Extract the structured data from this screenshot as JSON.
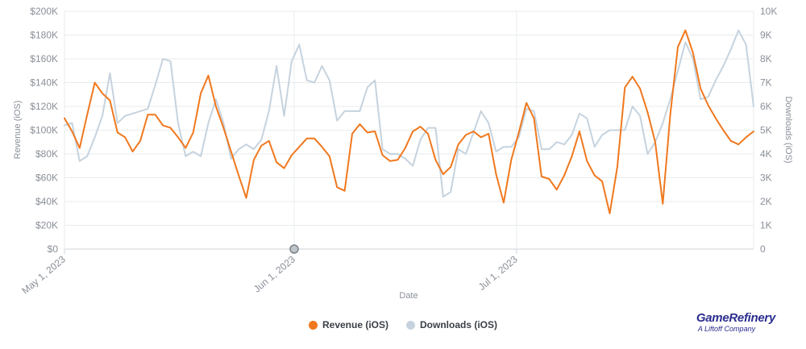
{
  "chart_data": {
    "type": "line",
    "xlabel": "Date",
    "ylabel_left": "Revenue (iOS)",
    "ylabel_right": "Downloads (iOS)",
    "ylim_left": [
      0,
      200000
    ],
    "ylim_right": [
      0,
      10000
    ],
    "y_ticks_left": [
      "$0",
      "$20K",
      "$40K",
      "$60K",
      "$80K",
      "$100K",
      "$120K",
      "$140K",
      "$160K",
      "$180K",
      "$200K"
    ],
    "y_ticks_right": [
      "0",
      "1K",
      "2K",
      "3K",
      "4K",
      "5K",
      "6K",
      "7K",
      "8K",
      "9K",
      "10K"
    ],
    "x_ticks": [
      {
        "label": "May 1, 2023",
        "day": 0
      },
      {
        "label": "Jun 1, 2023",
        "day": 31
      },
      {
        "label": "Jul 1, 2023",
        "day": 61
      }
    ],
    "x_max_day": 93,
    "highlight_day": 31,
    "series": [
      {
        "name": "Revenue (iOS)",
        "axis": "left",
        "color": "#f0781e",
        "values": [
          110000,
          99000,
          85000,
          113000,
          140000,
          131000,
          125000,
          98000,
          94000,
          82000,
          91000,
          113000,
          113000,
          104000,
          102000,
          94000,
          85000,
          98000,
          131000,
          146000,
          120000,
          102000,
          82000,
          62000,
          43000,
          75000,
          87000,
          91000,
          73000,
          68000,
          79000,
          86000,
          93000,
          93000,
          86000,
          78000,
          52000,
          49000,
          97000,
          105000,
          98000,
          99000,
          79000,
          74000,
          75000,
          85000,
          99000,
          103000,
          97000,
          75000,
          63000,
          69000,
          88000,
          96000,
          99000,
          94000,
          97000,
          63000,
          39000,
          75000,
          98000,
          123000,
          110000,
          61000,
          59000,
          50000,
          62000,
          78000,
          99000,
          74000,
          62000,
          57000,
          30000,
          69000,
          136000,
          145000,
          135000,
          115000,
          90000,
          38000,
          113000,
          170000,
          184000,
          165000,
          135000,
          121000,
          110000,
          100000,
          91000,
          88000,
          94000,
          99000
        ]
      },
      {
        "name": "Downloads (iOS)",
        "axis": "right",
        "color": "#c6d3de",
        "values": [
          5200,
          5300,
          3700,
          3900,
          4700,
          5600,
          7400,
          5300,
          5600,
          5700,
          5800,
          5900,
          6900,
          8000,
          7900,
          5300,
          3900,
          4100,
          3900,
          5300,
          6300,
          5300,
          3800,
          4200,
          4400,
          4200,
          4600,
          5800,
          7700,
          5600,
          7900,
          8600,
          7100,
          7000,
          7700,
          7100,
          5400,
          5800,
          5800,
          5800,
          6800,
          7100,
          4200,
          4000,
          4000,
          3800,
          3500,
          4600,
          5100,
          5100,
          2200,
          2400,
          4200,
          4000,
          4900,
          5800,
          5300,
          4100,
          4300,
          4300,
          4700,
          5900,
          5800,
          4200,
          4200,
          4500,
          4400,
          4800,
          5700,
          5500,
          4300,
          4800,
          5000,
          5000,
          5000,
          6000,
          5600,
          4000,
          4500,
          5300,
          6300,
          7500,
          8700,
          8000,
          6300,
          6400,
          7100,
          7700,
          8400,
          9200,
          8600,
          6000
        ]
      }
    ],
    "legend": [
      {
        "label": "Revenue (iOS)",
        "color": "#f0781e"
      },
      {
        "label": "Downloads (iOS)",
        "color": "#c6d3de"
      }
    ]
  },
  "brand": {
    "name": "GameRefinery",
    "sub": "A Liftoff Company"
  }
}
